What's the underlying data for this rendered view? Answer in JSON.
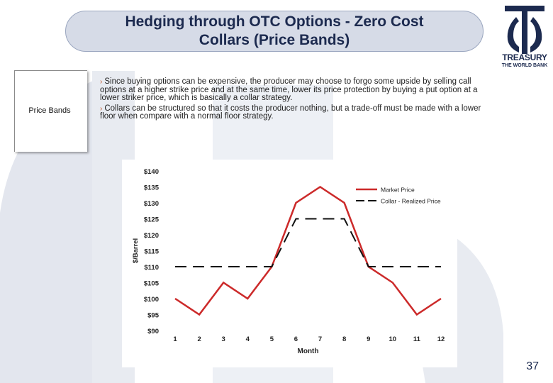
{
  "slide": {
    "title_line1": "Hedging through OTC Options - Zero Cost",
    "title_line2": "Collars (Price Bands)",
    "logo_line1": "TREASURY",
    "logo_line2": "THE WORLD BANK",
    "side_label": "Price Bands",
    "bullets": [
      "Since buying options can be expensive, the producer may choose to forgo some upside by selling call options at a higher strike price and at the same time, lower its price protection by buying a put option at a lower striker price, which is basically a collar strategy.",
      "Collars can be structured so that it costs the producer nothing, but a trade-off must be made with a lower floor when compare with a normal floor strategy."
    ],
    "page_number": "37",
    "colors": {
      "title_bg": "#d6dbe7",
      "navy": "#1c2a4f",
      "watermark": "#dfe2ea"
    }
  },
  "chart_data": {
    "type": "line",
    "x": [
      1,
      2,
      3,
      4,
      5,
      6,
      7,
      8,
      9,
      10,
      11,
      12
    ],
    "xlabel": "Month",
    "ylabel": "$/Barrel",
    "ylim": [
      90,
      140
    ],
    "yticks": [
      "$140",
      "$135",
      "$130",
      "$125",
      "$120",
      "$115",
      "$110",
      "$105",
      "$100",
      "$95",
      "$90"
    ],
    "legend_position": "top-right",
    "grid": false,
    "series": [
      {
        "name": "Market Price",
        "color": "#cc2a2a",
        "style": "solid",
        "values": [
          100,
          95,
          105,
          100,
          110,
          130,
          135,
          130,
          110,
          105,
          95,
          100
        ]
      },
      {
        "name": "Collar - Realized Price",
        "color": "#111111",
        "style": "dashed",
        "values": [
          110,
          110,
          110,
          110,
          110,
          125,
          125,
          125,
          110,
          110,
          110,
          110
        ]
      }
    ]
  }
}
